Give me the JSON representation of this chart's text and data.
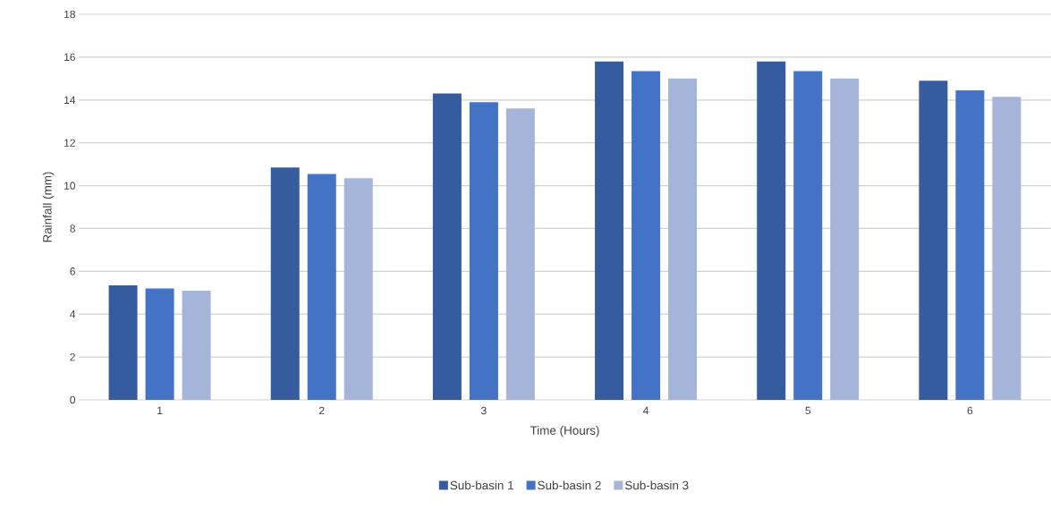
{
  "chart_data": {
    "type": "bar",
    "xlabel": "Time (Hours)",
    "ylabel": "Rainfall (mm)",
    "categories": [
      "1",
      "2",
      "3",
      "4",
      "5",
      "6"
    ],
    "series": [
      {
        "name": "Sub-basin 1",
        "color": "#355c9f",
        "values": [
          5.35,
          10.85,
          14.3,
          15.8,
          15.8,
          14.9
        ]
      },
      {
        "name": "Sub-basin 2",
        "color": "#4472c4",
        "values": [
          5.2,
          10.55,
          13.9,
          15.35,
          15.35,
          14.45
        ]
      },
      {
        "name": "Sub-basin 3",
        "color": "#a5b4d9",
        "values": [
          5.1,
          10.35,
          13.6,
          15.0,
          15.0,
          14.15
        ]
      }
    ],
    "ylim": [
      0,
      18
    ],
    "yticks": [
      0,
      2,
      4,
      6,
      8,
      10,
      12,
      14,
      16,
      18
    ],
    "grid": "y",
    "legend": "bottom"
  }
}
